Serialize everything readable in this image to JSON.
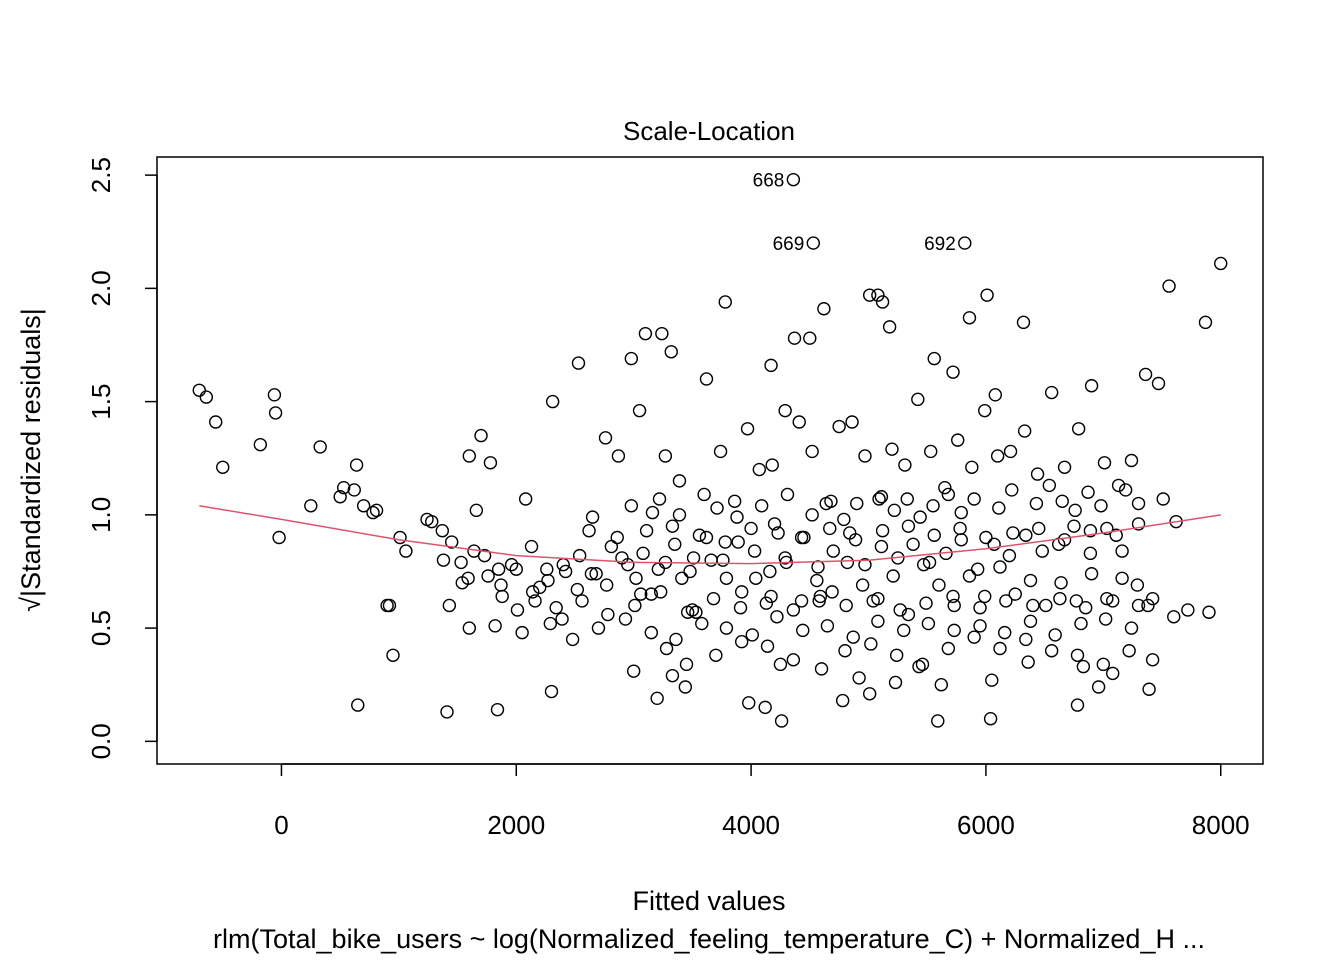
{
  "chart_data": {
    "type": "scatter",
    "title": "Scale-Location",
    "xlabel": "Fitted values",
    "ylabel_sqrt_symbol": "√",
    "ylabel": "|Standardized residuals|",
    "subtitle": "rlm(Total_bike_users ~ log(Normalized_feeling_temperature_C) + Normalized_H ...",
    "xlim": [
      -1060,
      8360
    ],
    "ylim": [
      -0.1,
      2.58
    ],
    "x_ticks": [
      0,
      2000,
      4000,
      6000,
      8000
    ],
    "x_tick_labels": [
      "0",
      "2000",
      "4000",
      "6000",
      "8000"
    ],
    "y_ticks": [
      0.0,
      0.5,
      1.0,
      1.5,
      2.0,
      2.5
    ],
    "y_tick_labels": [
      "0.0",
      "0.5",
      "1.0",
      "1.5",
      "2.0",
      "2.5"
    ],
    "point_color": "#000000",
    "smooth_color": "#DF536B",
    "grid": false,
    "labeled_points": [
      {
        "label": "668",
        "x": 4360,
        "y": 2.48
      },
      {
        "label": "669",
        "x": 4530,
        "y": 2.2
      },
      {
        "label": "692",
        "x": 5820,
        "y": 2.2
      }
    ],
    "smooth_line": {
      "x": [
        -700,
        0,
        1000,
        2000,
        3000,
        4000,
        5000,
        6000,
        7000,
        8000
      ],
      "y": [
        1.04,
        0.98,
        0.89,
        0.82,
        0.79,
        0.785,
        0.8,
        0.85,
        0.92,
        1.0
      ]
    },
    "points": {
      "x": [
        -700,
        -640,
        -560,
        -500,
        -180,
        -60,
        -50,
        330,
        250,
        500,
        530,
        640,
        620,
        700,
        780,
        810,
        920,
        950,
        1010,
        1060,
        -20,
        3100,
        3240,
        3320,
        3780,
        4170,
        4370,
        4500,
        4620,
        5010,
        5080,
        5120,
        5180,
        5560,
        5720,
        5860,
        6010,
        6080,
        6320,
        7560,
        7870,
        8000,
        1240,
        1370,
        1430,
        1530,
        1600,
        1660,
        1700,
        1780,
        1850,
        1960,
        2080,
        2200,
        2310,
        2420,
        2530,
        2650,
        2760,
        2870,
        2980,
        3050,
        3160,
        3270,
        3390,
        3510,
        3620,
        3740,
        3860,
        3970,
        4070,
        4180,
        4290,
        4410,
        4520,
        4640,
        4750,
        4860,
        4970,
        5090,
        5200,
        5310,
        5420,
        5530,
        5650,
        5760,
        5880,
        5990,
        6100,
        6210,
        6330,
        6440,
        6560,
        6670,
        6790,
        6900,
        7010,
        7130,
        7240,
        7360,
        7470,
        1380,
        1540,
        1640,
        1760,
        1880,
        2010,
        2140,
        2260,
        2390,
        2520,
        2640,
        2770,
        2900,
        3020,
        3150,
        3270,
        3410,
        3530,
        3660,
        3790,
        3920,
        4040,
        4170,
        4300,
        4430,
        4560,
        4690,
        4820,
        4950,
        5080,
        5210,
        5340,
        5470,
        5600,
        5730,
        5860,
        5990,
        6120,
        6250,
        6380,
        6510,
        6640,
        6770,
        6900,
        7030,
        7160,
        7290,
        7420,
        1280,
        1450,
        1590,
        1730,
        1870,
        2000,
        2130,
        2270,
        2400,
        2540,
        2680,
        2810,
        2950,
        3080,
        3210,
        3350,
        3480,
        3620,
        3760,
        3890,
        4030,
        4160,
        4290,
        4430,
        4570,
        4700,
        4840,
        4970,
        5110,
        5250,
        5380,
        5520,
        5660,
        5790,
        5930,
        6070,
        6200,
        6340,
        6480,
        6620,
        6750,
        6890,
        7030,
        7160,
        7300,
        1600,
        1820,
        2050,
        2290,
        2480,
        2700,
        2930,
        3150,
        3360,
        3580,
        3790,
        4010,
        4220,
        4440,
        4650,
        4870,
        5080,
        5300,
        5510,
        5730,
        5950,
        6160,
        6380,
        6590,
        6810,
        7020,
        7240,
        7380,
        650,
        900,
        1410,
        1840,
        2300,
        3200,
        3440,
        3980,
        4120,
        4260,
        4780,
        5010,
        5230,
        5590,
        6040,
        6780,
        6960,
        7390,
        3000,
        3330,
        3450,
        3700,
        4250,
        4600,
        4920,
        5430,
        5620,
        6050,
        6360,
        6830,
        7080,
        7420,
        7600,
        7720,
        7900,
        2980,
        3220,
        3390,
        3600,
        3710,
        3880,
        4090,
        4200,
        4310,
        4520,
        4680,
        4790,
        4900,
        5110,
        5220,
        5330,
        5440,
        5550,
        5680,
        5790,
        5900,
        6110,
        6220,
        6430,
        6540,
        6650,
        6760,
        6870,
        6980,
        7190,
        7300,
        7510,
        7620,
        3060,
        3280,
        3500,
        3920,
        4140,
        4360,
        4580,
        4800,
        5020,
        5240,
        5460,
        5680,
        5900,
        6120,
        6340,
        6560,
        6780,
        7000,
        7220,
        2620,
        2860,
        3110,
        3330,
        3560,
        3780,
        4000,
        4230,
        4450,
        4670,
        4890,
        5120,
        5340,
        5560,
        5780,
        6000,
        6230,
        6450,
        6670,
        6890,
        7110,
        2160,
        2340,
        2560,
        2780,
        3010,
        3230,
        3460,
        3680,
        3910,
        4130,
        4360,
        4590,
        4810,
        5040,
        5270,
        5490,
        5720,
        5950,
        6170,
        6400,
        6630,
        6850,
        7080,
        7300
      ],
      "y": [
        1.55,
        1.52,
        1.41,
        1.21,
        1.31,
        1.53,
        1.45,
        1.3,
        1.04,
        1.08,
        1.12,
        1.22,
        1.11,
        1.04,
        1.01,
        1.02,
        0.6,
        0.38,
        0.9,
        0.84,
        0.9,
        1.8,
        1.8,
        1.72,
        1.94,
        1.66,
        1.78,
        1.78,
        1.91,
        1.97,
        1.97,
        1.94,
        1.83,
        1.69,
        1.63,
        1.87,
        1.97,
        1.53,
        1.85,
        2.01,
        1.85,
        2.11,
        0.98,
        0.93,
        0.6,
        0.79,
        1.26,
        1.02,
        1.35,
        1.23,
        0.76,
        0.78,
        1.07,
        0.68,
        1.5,
        0.75,
        1.67,
        0.99,
        1.34,
        1.26,
        1.69,
        1.46,
        1.01,
        1.26,
        1.15,
        0.81,
        1.6,
        1.28,
        1.06,
        1.38,
        1.2,
        1.22,
        1.46,
        1.41,
        1.28,
        1.05,
        1.39,
        1.41,
        1.26,
        1.07,
        1.29,
        1.22,
        1.51,
        1.28,
        1.12,
        1.33,
        1.21,
        1.46,
        1.26,
        1.28,
        1.37,
        1.18,
        1.54,
        1.21,
        1.38,
        1.57,
        1.23,
        1.13,
        1.24,
        1.62,
        1.58,
        0.8,
        0.7,
        0.84,
        0.73,
        0.64,
        0.58,
        0.66,
        0.76,
        0.54,
        0.67,
        0.74,
        0.69,
        0.81,
        0.72,
        0.65,
        0.79,
        0.72,
        0.57,
        0.8,
        0.72,
        0.66,
        0.72,
        0.64,
        0.79,
        0.62,
        0.71,
        0.66,
        0.79,
        0.69,
        0.63,
        0.73,
        0.56,
        0.78,
        0.69,
        0.6,
        0.73,
        0.64,
        0.77,
        0.65,
        0.71,
        0.6,
        0.7,
        0.62,
        0.74,
        0.63,
        0.72,
        0.69,
        0.63,
        0.97,
        0.88,
        0.72,
        0.82,
        0.69,
        0.76,
        0.86,
        0.71,
        0.78,
        0.82,
        0.74,
        0.86,
        0.78,
        0.83,
        0.76,
        0.87,
        0.75,
        0.9,
        0.8,
        0.88,
        0.84,
        0.75,
        0.81,
        0.9,
        0.77,
        0.84,
        0.92,
        0.78,
        0.86,
        0.81,
        0.87,
        0.79,
        0.83,
        0.89,
        0.76,
        0.87,
        0.82,
        0.91,
        0.84,
        0.87,
        0.95,
        0.83,
        0.94,
        0.84,
        0.96,
        0.5,
        0.51,
        0.48,
        0.52,
        0.45,
        0.5,
        0.54,
        0.48,
        0.45,
        0.52,
        0.5,
        0.47,
        0.55,
        0.49,
        0.51,
        0.46,
        0.53,
        0.49,
        0.52,
        0.49,
        0.51,
        0.48,
        0.53,
        0.47,
        0.52,
        0.54,
        0.5,
        0.6,
        0.16,
        0.6,
        0.13,
        0.14,
        0.22,
        0.19,
        0.24,
        0.17,
        0.15,
        0.09,
        0.18,
        0.21,
        0.26,
        0.09,
        0.1,
        0.16,
        0.24,
        0.23,
        0.31,
        0.29,
        0.34,
        0.38,
        0.34,
        0.32,
        0.28,
        0.33,
        0.25,
        0.27,
        0.35,
        0.33,
        0.3,
        0.36,
        0.55,
        0.58,
        0.57,
        1.04,
        1.07,
        1.0,
        1.09,
        1.03,
        0.99,
        1.04,
        0.96,
        1.09,
        1.0,
        1.06,
        0.98,
        1.05,
        1.08,
        1.02,
        1.07,
        0.99,
        1.04,
        1.09,
        1.01,
        1.07,
        1.03,
        1.11,
        1.05,
        1.13,
        1.06,
        1.02,
        1.1,
        1.04,
        1.11,
        1.05,
        1.07,
        0.97,
        0.65,
        0.41,
        0.58,
        0.44,
        0.42,
        0.36,
        0.62,
        0.4,
        0.43,
        0.38,
        0.34,
        0.41,
        0.46,
        0.41,
        0.45,
        0.4,
        0.38,
        0.34,
        0.4,
        0.93,
        0.9,
        0.93,
        0.95,
        0.91,
        0.88,
        0.94,
        0.92,
        0.9,
        0.94,
        0.89,
        0.93,
        0.95,
        0.91,
        0.94,
        0.9,
        0.92,
        0.94,
        0.89,
        0.93,
        0.91,
        0.62,
        0.59,
        0.62,
        0.56,
        0.6,
        0.66,
        0.57,
        0.63,
        0.59,
        0.61,
        0.58,
        0.64,
        0.6,
        0.62,
        0.58,
        0.61,
        0.64,
        0.59,
        0.62,
        0.6,
        0.63,
        0.59,
        0.62,
        0.6
      ]
    }
  }
}
